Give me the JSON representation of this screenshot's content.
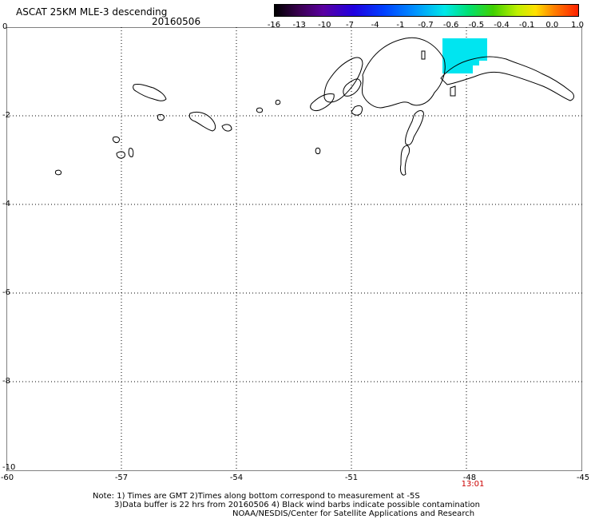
{
  "header": {
    "title": "ASCAT 25KM MLE-3 descending",
    "date": "20160506"
  },
  "colorbar": {
    "tick_labels": [
      "-16",
      "-13",
      "-10",
      "-7",
      "-4",
      "-1",
      "-0.7",
      "-0.6",
      "-0.5",
      "-0.4",
      "-0.1",
      "0.0",
      "1.0"
    ]
  },
  "axes": {
    "y_labels": [
      "0",
      "-2",
      "-4",
      "-6",
      "-8",
      "-10"
    ],
    "x_labels": [
      "-60",
      "-57",
      "-54",
      "-51",
      "-48",
      "-45"
    ],
    "lat_range": [
      -10,
      0
    ],
    "lon_range": [
      -60,
      -45
    ]
  },
  "time_label": "13:01",
  "notes": {
    "line1": "Note: 1) Times are GMT 2)Times along bottom correspond to measurement at -5S",
    "line2": "3)Data buffer is 22 hrs from 20160506 4) Black wind barbs indicate possible contamination",
    "line3": "NOAA/NESDIS/Center for Satellite Applications and Research"
  },
  "colors": {
    "data_fill": "#00e5f0",
    "time_label": "#cc0000"
  }
}
